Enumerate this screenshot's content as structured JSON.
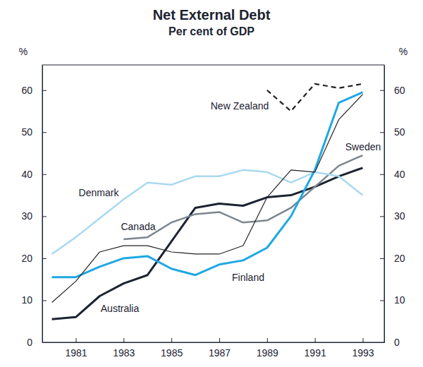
{
  "chart_data": {
    "type": "line",
    "title": "Net External Debt",
    "subtitle": "Per cent of GDP",
    "ylabel": "%",
    "y2label": "%",
    "x": [
      1980,
      1981,
      1982,
      1983,
      1984,
      1985,
      1986,
      1987,
      1988,
      1989,
      1990,
      1991,
      1992,
      1993
    ],
    "xlim": [
      1979.6,
      1993.9
    ],
    "xticks": [
      1981,
      1983,
      1985,
      1987,
      1989,
      1991,
      1993
    ],
    "ylim": [
      0,
      66
    ],
    "yticks": [
      0,
      10,
      20,
      30,
      40,
      50,
      60
    ],
    "y2lim": [
      0,
      66
    ],
    "y2ticks": [
      0,
      10,
      20,
      30,
      40,
      50,
      60
    ],
    "grid": false,
    "series": [
      {
        "name": "Australia",
        "color": "#1c2331",
        "line_style": "solid",
        "values": [
          5.5,
          6,
          11,
          14,
          16,
          24,
          32,
          33,
          32.5,
          34.5,
          35,
          37,
          39.5,
          41.5
        ]
      },
      {
        "name": "Canada",
        "color": "#7d868e",
        "line_style": "solid",
        "values": [
          null,
          null,
          null,
          24.5,
          25,
          28.5,
          30.5,
          31,
          28.5,
          29,
          32,
          37,
          42,
          44.5
        ]
      },
      {
        "name": "Denmark",
        "color": "#a9d9f0",
        "line_style": "solid",
        "values": [
          21,
          25,
          29.5,
          34,
          38,
          37.5,
          39.5,
          39.5,
          41,
          40.5,
          38,
          40.5,
          39.5,
          35
        ]
      },
      {
        "name": "Finland",
        "color": "#1ea8e2",
        "line_style": "solid",
        "values": [
          15.5,
          15.5,
          18,
          20,
          20.5,
          17.5,
          16,
          18.5,
          19.5,
          22.5,
          30,
          41,
          57,
          59.5
        ]
      },
      {
        "name": "Sweden",
        "color": "#222222",
        "line_style": "solid",
        "values": [
          9.5,
          14.5,
          21.5,
          23,
          23,
          21.5,
          21,
          21,
          23,
          34.5,
          41,
          40.5,
          53,
          59
        ]
      },
      {
        "name": "New Zealand",
        "color": "#222222",
        "line_style": "dashed",
        "values": [
          null,
          null,
          null,
          null,
          null,
          null,
          null,
          null,
          null,
          60,
          55,
          61.5,
          60.5,
          61.5
        ]
      }
    ]
  }
}
